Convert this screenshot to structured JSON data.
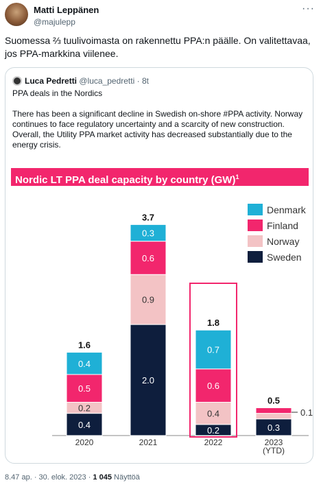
{
  "author": {
    "name": "Matti Leppänen",
    "handle": "@majulepp",
    "more_icon": "more-icon"
  },
  "tweet": {
    "text": "Suomessa ⅔ tuulivoimasta on rakennettu PPA:n päälle. On valitettavaa, jos PPA-markkina viilenee."
  },
  "quote": {
    "name": "Luca Pedretti",
    "handle": "@luca_pedretti",
    "time": "· 8t",
    "heading": "PPA deals in the Nordics",
    "body": "There has been a significant decline in Swedish on-shore #PPA  activity. Norway continues to face regulatory uncertainty and a scarcity of new construction. Overall, the Utility PPA market activity has decreased substantially due to the energy crisis."
  },
  "chart_data": {
    "type": "bar",
    "stacked": true,
    "title": "Nordic LT PPA deal capacity by country (GW)",
    "title_sup": "1",
    "categories": [
      "2020",
      "2021",
      "2022",
      "2023\n(YTD)"
    ],
    "totals": [
      "1.6",
      "3.7",
      "1.8",
      "0.5"
    ],
    "series": [
      {
        "name": "Sweden",
        "color": "#0e1e3d",
        "values": [
          0.4,
          2.0,
          0.2,
          0.3
        ]
      },
      {
        "name": "Norway",
        "color": "#f3c3c5",
        "values": [
          0.2,
          0.9,
          0.4,
          0.1
        ]
      },
      {
        "name": "Finland",
        "color": "#f2266d",
        "values": [
          0.5,
          0.6,
          0.6,
          0.1
        ]
      },
      {
        "name": "Denmark",
        "color": "#1fb0d6",
        "values": [
          0.4,
          0.3,
          0.7,
          0.0
        ]
      }
    ],
    "legend_order": [
      "Denmark",
      "Finland",
      "Norway",
      "Sweden"
    ],
    "legend_position": "top-right",
    "highlight_category": "2022",
    "ylim": [
      0,
      4.2
    ],
    "annotation": "0.1"
  },
  "footer": {
    "time": "8.47 ap. · 30. elok. 2023 · ",
    "views": "1 045",
    "views_label": " Näyttöä"
  }
}
